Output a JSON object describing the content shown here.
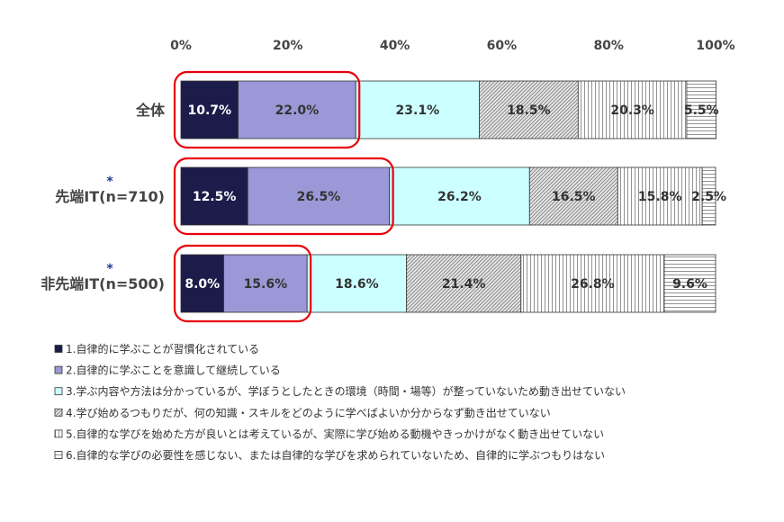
{
  "chart_data": {
    "type": "bar",
    "orientation": "horizontal",
    "stacked": true,
    "percent_stacked": true,
    "x_ticks": [
      "0%",
      "20%",
      "40%",
      "60%",
      "80%",
      "100%"
    ],
    "xlim": [
      0,
      100
    ],
    "grid": false,
    "legend_position": "bottom",
    "categories": [
      {
        "label": "全体",
        "marker": ""
      },
      {
        "label": "先端IT(n=710)",
        "marker": "*"
      },
      {
        "label": "非先端IT(n=500)",
        "marker": "*"
      }
    ],
    "series": [
      {
        "name": "1.自律的に学ぶことが習慣化されている",
        "values": [
          10.7,
          12.5,
          8.0
        ],
        "labels": [
          "10.7%",
          "12.5%",
          "8.0%"
        ],
        "color": "#1c1c4a"
      },
      {
        "name": "2.自律的に学ぶことを意識して継続している",
        "values": [
          22.0,
          26.5,
          15.6
        ],
        "labels": [
          "22.0%",
          "26.5%",
          "15.6%"
        ],
        "color": "#9a98d6"
      },
      {
        "name": "3.学ぶ内容や方法は分かっているが、学ぼうとしたときの環境（時間・場等）が整っていないため動き出せていない",
        "values": [
          23.1,
          26.2,
          18.6
        ],
        "labels": [
          "23.1%",
          "26.2%",
          "18.6%"
        ],
        "color": "#ccffff"
      },
      {
        "name": "4.学び始めるつもりだが、何の知識・スキルをどのように学べばよいか分からなず動き出せていない",
        "values": [
          18.5,
          16.5,
          21.4
        ],
        "labels": [
          "18.5%",
          "16.5%",
          "21.4%"
        ],
        "color": "#c0c0c0"
      },
      {
        "name": "5.自律的な学びを始めた方が良いとは考えているが、実際に学び始める動機やきっかけがなく動き出せていない",
        "values": [
          20.3,
          15.8,
          26.8
        ],
        "labels": [
          "20.3%",
          "15.8%",
          "26.8%"
        ],
        "color": "#ffffff"
      },
      {
        "name": "6.自律的な学びの必要性を感じない、または自律的な学びを求められていないため、自律的に学ぶつもりはない",
        "values": [
          5.5,
          2.5,
          9.6
        ],
        "labels": [
          "5.5%",
          "2.5%",
          "9.6%"
        ],
        "color": "#ffffff"
      }
    ],
    "highlight_color": "#e8000b"
  }
}
